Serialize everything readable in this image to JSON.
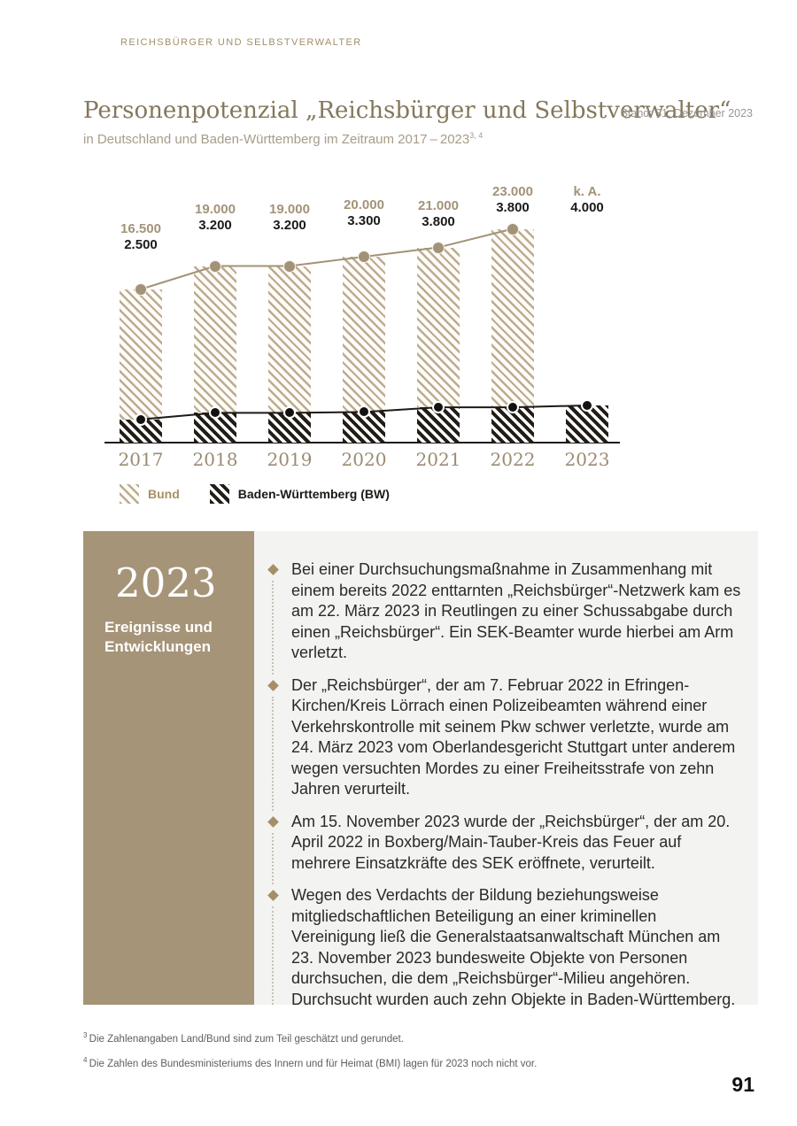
{
  "page": {
    "kicker": "REICHSBÜRGER UND SELBSTVERWALTER",
    "title": "Personenpotenzial „Reichsbürger und Selbstverwalter“",
    "stand": "Stand: 31. Dezember 2023",
    "subtitle": "in Deutschland und Baden-Württemberg im Zeitraum 2017 – 2023",
    "subtitle_footnote_refs": "3, 4",
    "page_number": "91"
  },
  "chart_data": {
    "type": "bar",
    "title": "Personenpotenzial „Reichsbürger und Selbstverwalter“ in Deutschland und Baden-Württemberg 2017–2023",
    "categories": [
      "2017",
      "2018",
      "2019",
      "2020",
      "2021",
      "2022",
      "2023"
    ],
    "series": [
      {
        "name": "Bund",
        "values": [
          16500,
          19000,
          19000,
          20000,
          21000,
          23000,
          null
        ],
        "labels": [
          "16.500",
          "19.000",
          "19.000",
          "20.000",
          "21.000",
          "23.000",
          "k. A."
        ],
        "color": "#a29378",
        "style": "hatched-bar-with-line-dots"
      },
      {
        "name": "Baden-Württemberg (BW)",
        "values": [
          2500,
          3200,
          3200,
          3300,
          3800,
          3800,
          4000
        ],
        "labels": [
          "2.500",
          "3.200",
          "3.200",
          "3.300",
          "3.800",
          "3.800",
          "4.000"
        ],
        "color": "#1d1a16",
        "style": "hatched-bar-with-line-dots"
      }
    ],
    "legend": [
      "Bund",
      "Baden-Württemberg (BW)"
    ],
    "legend_position": "bottom-left",
    "ylim": [
      0,
      25000
    ],
    "grid": false,
    "no_data_label": "k. A."
  },
  "legend": {
    "bund": "Bund",
    "bw": "Baden-Württemberg (BW)"
  },
  "events": {
    "year": "2023",
    "heading": "Ereignisse und Entwicklungen",
    "items": [
      {
        "text": "Bei einer Durchsuchungsmaßnahme in Zusammenhang mit einem bereits 2022 enttarnten „Reichsbürger“-Netzwerk kam es am 22. März 2023 in Reutlingen zu einer Schussabgabe durch einen „Reichsbürger“. Ein SEK-Beamter wurde hierbei am Arm verletzt."
      },
      {
        "text": "Der „Reichsbürger“, der am 7. Februar 2022 in Efringen-Kirchen/Kreis Lörrach einen Polizeibeamten während einer Verkehrskontrolle mit seinem Pkw schwer verletzte, wurde am 24. März 2023 vom Oberlandesgericht Stuttgart unter anderem wegen versuchten Mordes zu einer Freiheitsstrafe von zehn Jahren verurteilt."
      },
      {
        "text": "Am 15. November 2023 wurde der „Reichsbürger“, der am 20. April 2022 in Boxberg/Main-Tauber-Kreis das Feuer auf mehrere Einsatzkräfte des SEK eröffnete, verurteilt."
      },
      {
        "text": "Wegen des Verdachts der Bildung beziehungsweise mitgliedschaftlichen Beteiligung an einer kriminellen Vereinigung ließ die Generalstaatsanwaltschaft München am 23. November 2023 bundesweite Objekte von Personen durchsuchen, die dem „Reichsbürger“-Milieu angehören. Durchsucht wurden auch zehn Objekte in Baden-Württemberg."
      }
    ]
  },
  "footnotes": [
    {
      "marker": "3",
      "text": "Die Zahlenangaben Land/Bund sind zum Teil geschätzt und gerundet."
    },
    {
      "marker": "4",
      "text": "Die Zahlen des Bundesministeriums des Innern und für Heimat (BMI) lagen für 2023 noch nicht vor."
    }
  ],
  "colors": {
    "accent_tan": "#a69478",
    "hatch_tan": "#bcab8e",
    "hatch_black": "#221d17",
    "panel_gray": "#f3f3f1",
    "kicker": "#a28f6b",
    "title": "#85775c"
  }
}
